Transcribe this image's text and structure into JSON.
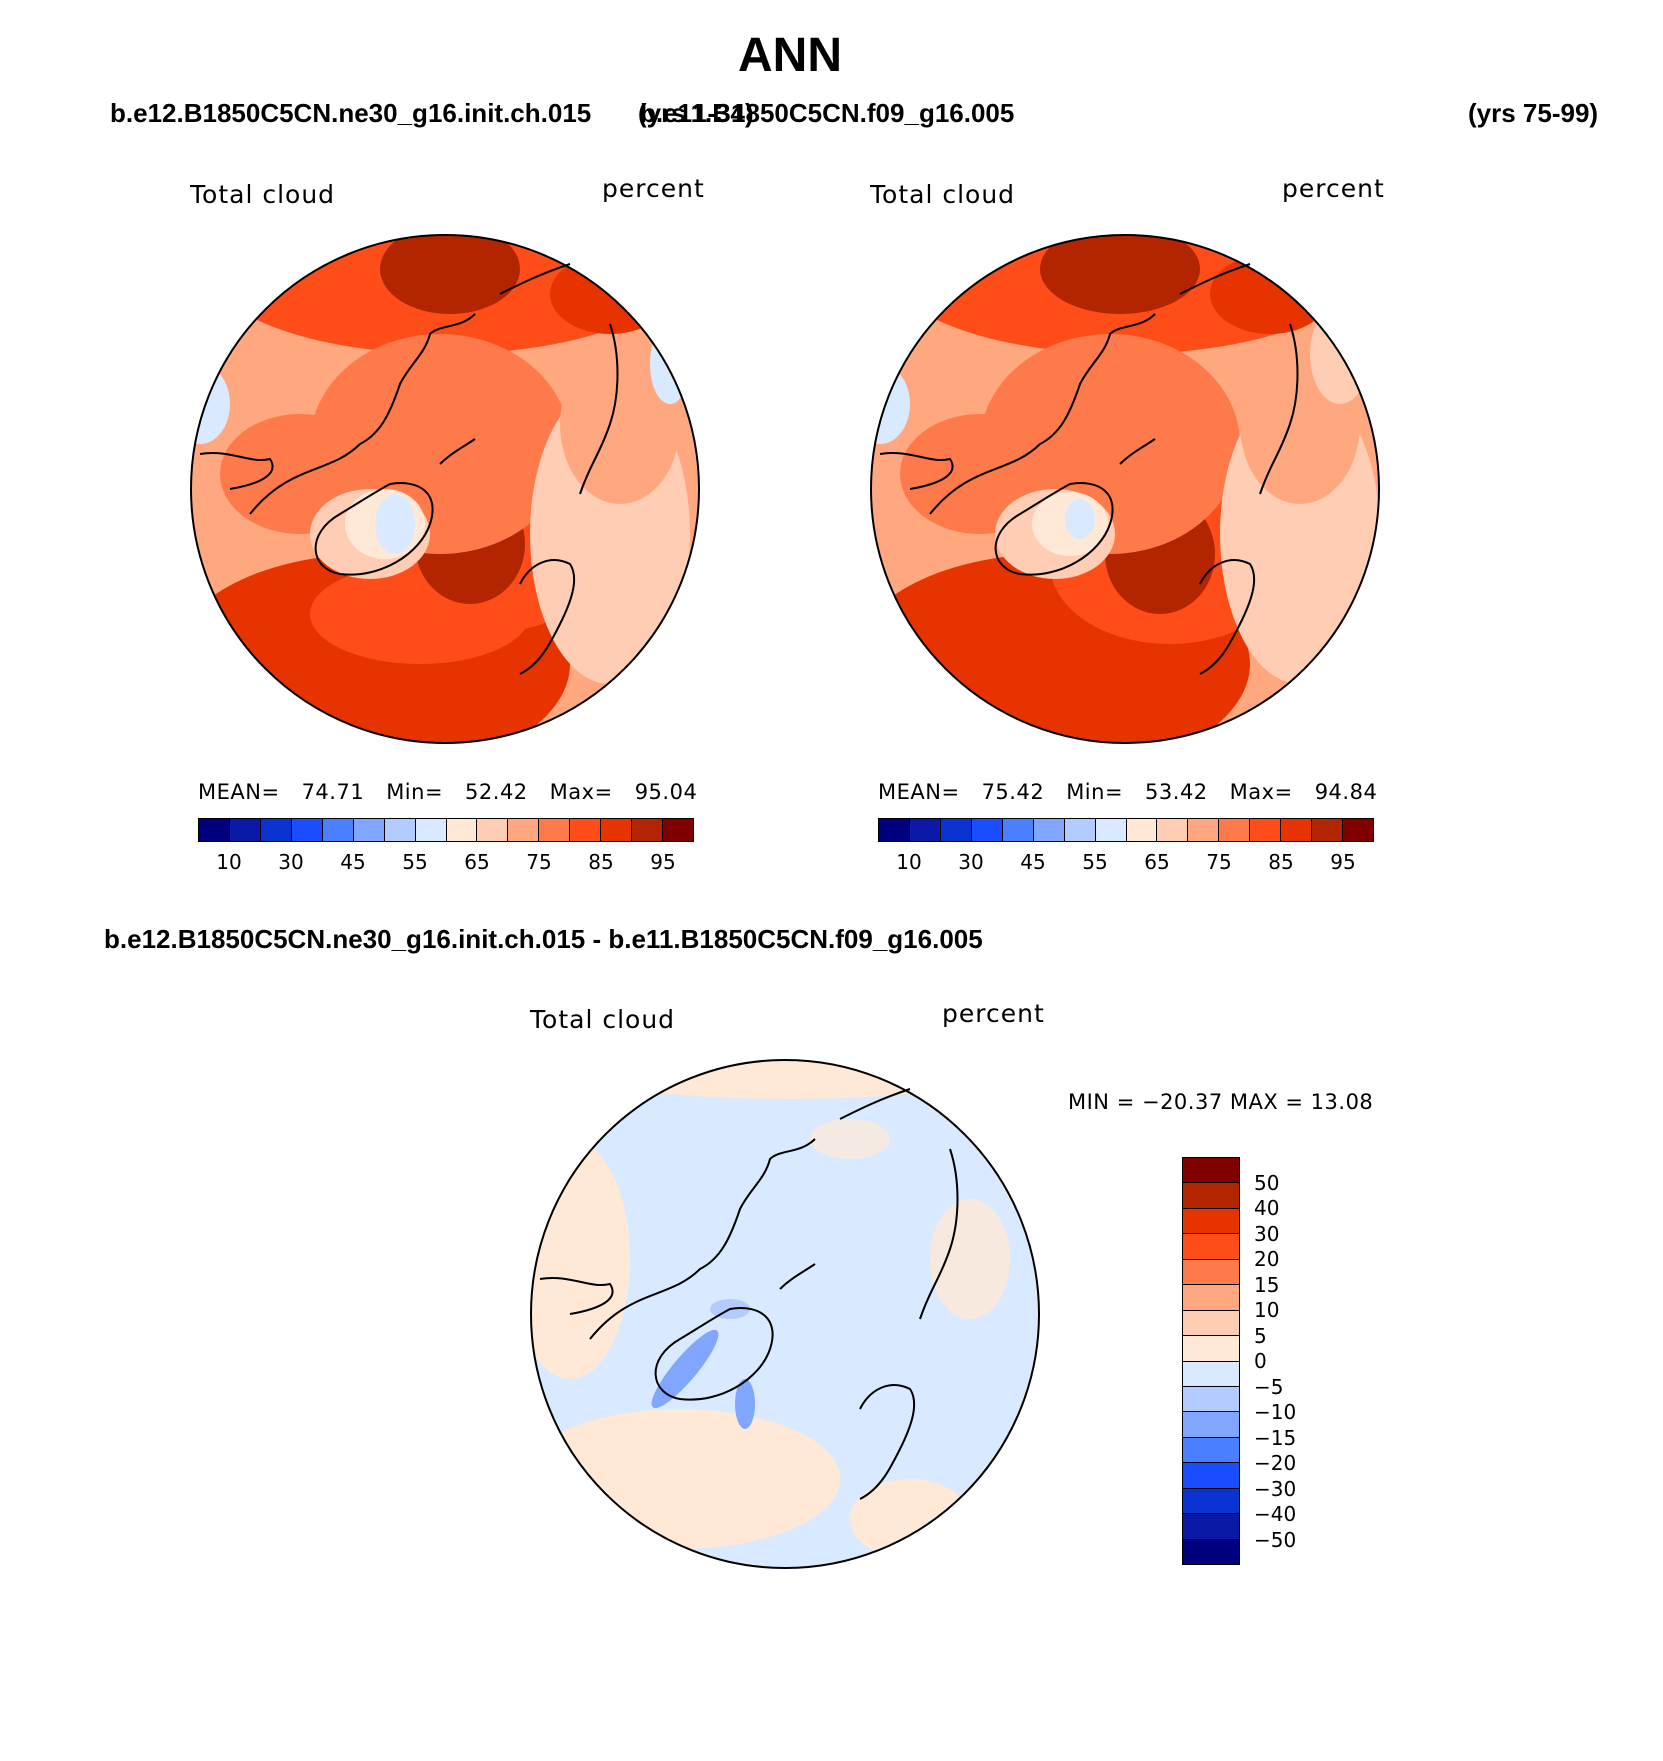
{
  "main_title": "ANN",
  "panels": [
    {
      "case_name": "b.e12.B1850C5CN.ne30_g16.init.ch.015",
      "years": "(yrs 1-34)",
      "variable": "Total cloud",
      "units": "percent",
      "stats": {
        "mean_label": "MEAN=",
        "mean": "74.71",
        "min_label": "Min=",
        "min": "52.42",
        "max_label": "Max=",
        "max": "95.04"
      }
    },
    {
      "case_name": "b.e11.B1850C5CN.f09_g16.005",
      "years": "(yrs 75-99)",
      "variable": "Total cloud",
      "units": "percent",
      "stats": {
        "mean_label": "MEAN=",
        "mean": "75.42",
        "min_label": "Min=",
        "min": "53.42",
        "max_label": "Max=",
        "max": "94.84"
      }
    }
  ],
  "diff_panel": {
    "title": "b.e12.B1850C5CN.ne30_g16.init.ch.015 - b.e11.B1850C5CN.f09_g16.005",
    "variable": "Total cloud",
    "units": "percent",
    "minmax_text": "MIN = −20.37  MAX =   13.08"
  },
  "colorbar_abs": {
    "colors": [
      "#00007f",
      "#0a1aa6",
      "#0a33d1",
      "#1a4dff",
      "#4a7fff",
      "#80a6ff",
      "#b3ccff",
      "#d9e9ff",
      "#ffe9d6",
      "#ffcdb3",
      "#ffa880",
      "#ff7a4a",
      "#ff4d1a",
      "#e63300",
      "#b32400",
      "#800000"
    ],
    "tick_labels": [
      "10",
      "30",
      "45",
      "55",
      "65",
      "75",
      "85",
      "95"
    ]
  },
  "colorbar_diff": {
    "colors_top_to_bottom": [
      "#800000",
      "#b32400",
      "#e63300",
      "#ff4d1a",
      "#ff7a4a",
      "#ffa880",
      "#ffcdb3",
      "#ffe9d6",
      "#d9e9ff",
      "#b3ccff",
      "#80a6ff",
      "#4a7fff",
      "#1a4dff",
      "#0a33d1",
      "#0a1aa6",
      "#00007f"
    ],
    "tick_labels": [
      "50",
      "40",
      "30",
      "20",
      "15",
      "10",
      "5",
      "0",
      "−5",
      "−10",
      "−15",
      "−20",
      "−30",
      "−40",
      "−50"
    ]
  }
}
